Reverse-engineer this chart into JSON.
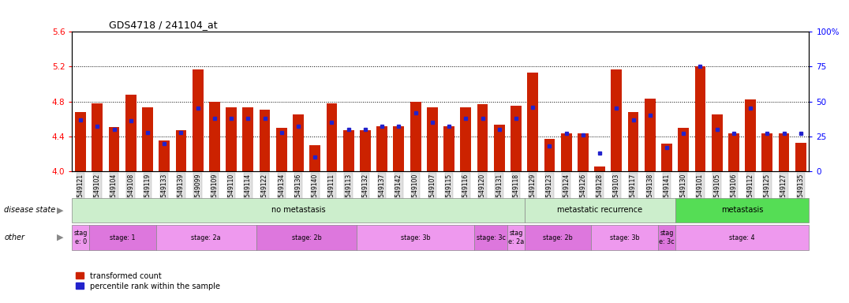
{
  "title": "GDS4718 / 241104_at",
  "samples": [
    "GSM549121",
    "GSM549102",
    "GSM549104",
    "GSM549108",
    "GSM549119",
    "GSM549133",
    "GSM549139",
    "GSM549099",
    "GSM549109",
    "GSM549110",
    "GSM549114",
    "GSM549122",
    "GSM549134",
    "GSM549136",
    "GSM549140",
    "GSM549111",
    "GSM549113",
    "GSM549132",
    "GSM549137",
    "GSM549142",
    "GSM549100",
    "GSM549107",
    "GSM549115",
    "GSM549116",
    "GSM549120",
    "GSM549131",
    "GSM549118",
    "GSM549129",
    "GSM549123",
    "GSM549124",
    "GSM549126",
    "GSM549128",
    "GSM549103",
    "GSM549117",
    "GSM549138",
    "GSM549141",
    "GSM549130",
    "GSM549101",
    "GSM549105",
    "GSM549106",
    "GSM549112",
    "GSM549125",
    "GSM549127",
    "GSM549135"
  ],
  "red_values": [
    4.68,
    4.78,
    4.51,
    4.88,
    4.73,
    4.35,
    4.47,
    5.17,
    4.8,
    4.73,
    4.73,
    4.71,
    4.5,
    4.65,
    4.3,
    4.78,
    4.47,
    4.47,
    4.52,
    4.52,
    4.8,
    4.73,
    4.52,
    4.73,
    4.77,
    4.53,
    4.75,
    5.13,
    4.37,
    4.43,
    4.43,
    4.05,
    5.17,
    4.68,
    4.83,
    4.32,
    4.5,
    5.2,
    4.65,
    4.43,
    4.82,
    4.43,
    4.43,
    4.33
  ],
  "blue_values": [
    37,
    32,
    30,
    36,
    28,
    20,
    28,
    45,
    38,
    38,
    38,
    38,
    28,
    32,
    10,
    35,
    30,
    30,
    32,
    32,
    42,
    35,
    32,
    38,
    38,
    30,
    38,
    46,
    18,
    27,
    26,
    13,
    45,
    37,
    40,
    17,
    27,
    75,
    30,
    27,
    45,
    27,
    27,
    27
  ],
  "ymin": 4.0,
  "ymax": 5.6,
  "yticks_red": [
    4.0,
    4.4,
    4.8,
    5.2,
    5.6
  ],
  "yticks_blue": [
    0,
    25,
    50,
    75,
    100
  ],
  "dotted_lines_red": [
    4.4,
    4.8,
    5.2
  ],
  "bar_color": "#cc2200",
  "dot_color": "#2222cc",
  "ds_groups": [
    {
      "label": "no metastasis",
      "start": 0,
      "end": 27,
      "color": "#cceecc"
    },
    {
      "label": "metastatic recurrence",
      "start": 27,
      "end": 36,
      "color": "#cceecc"
    },
    {
      "label": "metastasis",
      "start": 36,
      "end": 44,
      "color": "#55dd55"
    }
  ],
  "stage_groups": [
    {
      "label": "stag\ne: 0",
      "start": 0,
      "end": 1
    },
    {
      "label": "stage: 1",
      "start": 1,
      "end": 5
    },
    {
      "label": "stage: 2a",
      "start": 5,
      "end": 11
    },
    {
      "label": "stage: 2b",
      "start": 11,
      "end": 17
    },
    {
      "label": "stage: 3b",
      "start": 17,
      "end": 24
    },
    {
      "label": "stage: 3c",
      "start": 24,
      "end": 26
    },
    {
      "label": "stag\ne: 2a",
      "start": 26,
      "end": 27
    },
    {
      "label": "stage: 2b",
      "start": 27,
      "end": 31
    },
    {
      "label": "stage: 3b",
      "start": 31,
      "end": 35
    },
    {
      "label": "stag\ne: 3c",
      "start": 35,
      "end": 36
    },
    {
      "label": "stage: 4",
      "start": 36,
      "end": 44
    }
  ],
  "stage_colors": [
    "#ee99ee",
    "#dd77dd",
    "#ee99ee",
    "#dd77dd",
    "#ee99ee",
    "#dd77dd",
    "#ee99ee",
    "#dd77dd",
    "#ee99ee",
    "#dd77dd",
    "#ee99ee"
  ]
}
